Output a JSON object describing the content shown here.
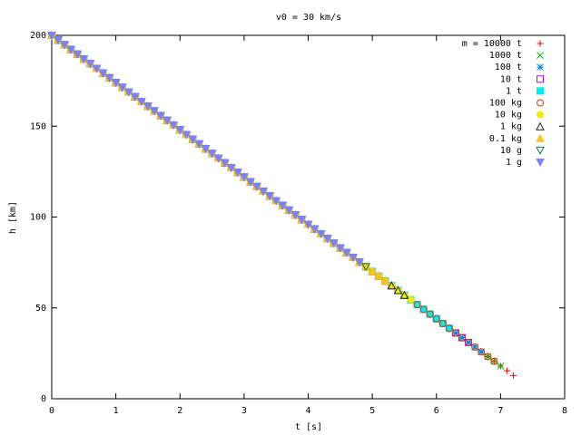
{
  "chart_data": {
    "type": "scatter",
    "title": "v0 = 30 km/s",
    "xlabel": "t [s]",
    "ylabel": "h [km]",
    "xlim": [
      0,
      8
    ],
    "xticks": [
      0,
      1,
      2,
      3,
      4,
      5,
      6,
      7,
      8
    ],
    "ylim": [
      0,
      200
    ],
    "yticks": [
      0,
      50,
      100,
      150,
      200
    ],
    "legend": "top-right",
    "x": [
      0,
      0.1,
      0.2,
      0.3,
      0.4,
      0.5,
      0.6,
      0.7,
      0.8,
      0.9,
      1,
      1.1,
      1.2,
      1.3,
      1.4,
      1.5,
      1.6,
      1.7,
      1.8,
      1.9,
      2,
      2.1,
      2.2,
      2.3,
      2.4,
      2.5,
      2.6,
      2.7,
      2.8,
      2.9,
      3,
      3.1,
      3.2,
      3.3,
      3.4,
      3.5,
      3.6,
      3.7,
      3.8,
      3.9,
      4,
      4.1,
      4.2,
      4.3,
      4.4,
      4.5,
      4.6,
      4.7,
      4.8,
      4.9,
      5,
      5.1,
      5.2,
      5.3,
      5.4,
      5.5,
      5.6,
      5.7,
      5.8,
      5.9,
      6,
      6.1,
      6.2,
      6.3,
      6.4,
      6.5,
      6.6,
      6.7,
      6.8,
      6.9,
      7,
      7.1,
      7.2
    ],
    "series": [
      {
        "name": "m = 10000 t",
        "color": "#ff0000",
        "marker": "plus",
        "values": [
          200,
          197.4,
          194.8,
          192.2,
          189.6,
          187,
          184.4,
          181.8,
          179.2,
          176.6,
          174,
          171.4,
          168.8,
          166.2,
          163.6,
          161,
          158.4,
          155.8,
          153.2,
          150.6,
          148,
          145.4,
          142.8,
          140.2,
          137.6,
          135,
          132.4,
          129.8,
          127.2,
          124.6,
          122,
          119.4,
          116.8,
          114.2,
          111.6,
          109,
          106.4,
          103.8,
          101.2,
          98.6,
          96,
          93.4,
          90.8,
          88.2,
          85.6,
          83,
          80.4,
          77.8,
          75.2,
          72.6,
          70,
          67.4,
          64.8,
          62.2,
          59.6,
          57,
          54.4,
          51.8,
          49.2,
          46.6,
          44,
          41.4,
          38.8,
          36.2,
          33.6,
          31,
          28.4,
          25.8,
          23.2,
          20.6,
          18,
          15.4,
          12.8
        ]
      },
      {
        "name": "1000 t",
        "color": "#00c000",
        "marker": "cross",
        "values": [
          200,
          197.4,
          194.8,
          192.2,
          189.6,
          187,
          184.4,
          181.8,
          179.2,
          176.6,
          174,
          171.4,
          168.8,
          166.2,
          163.6,
          161,
          158.4,
          155.8,
          153.2,
          150.6,
          148,
          145.4,
          142.8,
          140.2,
          137.6,
          135,
          132.4,
          129.8,
          127.2,
          124.6,
          122,
          119.4,
          116.8,
          114.2,
          111.6,
          109,
          106.4,
          103.8,
          101.2,
          98.6,
          96,
          93.4,
          90.8,
          88.2,
          85.6,
          83,
          80.4,
          77.8,
          75.2,
          72.6,
          70,
          67.4,
          64.8,
          62.2,
          59.6,
          57,
          54.4,
          51.8,
          49.2,
          46.6,
          44,
          41.4,
          38.8,
          36.2,
          33.6,
          31,
          28.4,
          25.8,
          23.2,
          20.6,
          18,
          null,
          null
        ]
      },
      {
        "name": "100 t",
        "color": "#0080ff",
        "marker": "star",
        "values": [
          200,
          197.4,
          194.8,
          192.2,
          189.6,
          187,
          184.4,
          181.8,
          179.2,
          176.6,
          174,
          171.4,
          168.8,
          166.2,
          163.6,
          161,
          158.4,
          155.8,
          153.2,
          150.6,
          148,
          145.4,
          142.8,
          140.2,
          137.6,
          135,
          132.4,
          129.8,
          127.2,
          124.6,
          122,
          119.4,
          116.8,
          114.2,
          111.6,
          109,
          106.4,
          103.8,
          101.2,
          98.6,
          96,
          93.4,
          90.8,
          88.2,
          85.6,
          83,
          80.4,
          77.8,
          75.2,
          72.6,
          70,
          67.4,
          64.8,
          62.2,
          59.6,
          57,
          54.4,
          51.8,
          49.2,
          46.6,
          44,
          41.4,
          38.8,
          36.2,
          33.6,
          31,
          28.4,
          25.8,
          null,
          null,
          null,
          null,
          null
        ]
      },
      {
        "name": "10 t",
        "color": "#c000ff",
        "marker": "square",
        "values": [
          200,
          197.4,
          194.8,
          192.2,
          189.6,
          187,
          184.4,
          181.8,
          179.2,
          176.6,
          174,
          171.4,
          168.8,
          166.2,
          163.6,
          161,
          158.4,
          155.8,
          153.2,
          150.6,
          148,
          145.4,
          142.8,
          140.2,
          137.6,
          135,
          132.4,
          129.8,
          127.2,
          124.6,
          122,
          119.4,
          116.8,
          114.2,
          111.6,
          109,
          106.4,
          103.8,
          101.2,
          98.6,
          96,
          93.4,
          90.8,
          88.2,
          85.6,
          83,
          80.4,
          77.8,
          75.2,
          72.6,
          70,
          67.4,
          64.8,
          62.2,
          59.6,
          57,
          54.4,
          51.8,
          49.2,
          46.6,
          44,
          41.4,
          38.8,
          36.2,
          33.6,
          31,
          null,
          null,
          null,
          null,
          null,
          null,
          null
        ]
      },
      {
        "name": "1 t",
        "color": "#00eeee",
        "marker": "square-filled",
        "values": [
          200,
          197.4,
          194.8,
          192.2,
          189.6,
          187,
          184.4,
          181.8,
          179.2,
          176.6,
          174,
          171.4,
          168.8,
          166.2,
          163.6,
          161,
          158.4,
          155.8,
          153.2,
          150.6,
          148,
          145.4,
          142.8,
          140.2,
          137.6,
          135,
          132.4,
          129.8,
          127.2,
          124.6,
          122,
          119.4,
          116.8,
          114.2,
          111.6,
          109,
          106.4,
          103.8,
          101.2,
          98.6,
          96,
          93.4,
          90.8,
          88.2,
          85.6,
          83,
          80.4,
          77.8,
          75.2,
          72.6,
          70,
          67.4,
          64.8,
          62.2,
          59.6,
          57,
          54.4,
          51.8,
          49.2,
          46.6,
          44,
          41.4,
          38.8,
          null,
          null,
          null,
          null,
          null,
          null,
          null,
          null,
          null,
          null
        ]
      },
      {
        "name": "100 kg",
        "color": "#c04000",
        "marker": "circle",
        "values": [
          200,
          197.4,
          194.8,
          192.2,
          189.6,
          187,
          184.4,
          181.8,
          179.2,
          176.6,
          174,
          171.4,
          168.8,
          166.2,
          163.6,
          161,
          158.4,
          155.8,
          153.2,
          150.6,
          148,
          145.4,
          142.8,
          140.2,
          137.6,
          135,
          132.4,
          129.8,
          127.2,
          124.6,
          122,
          119.4,
          116.8,
          114.2,
          111.6,
          109,
          106.4,
          103.8,
          101.2,
          98.6,
          96,
          93.4,
          90.8,
          88.2,
          85.6,
          83,
          80.4,
          77.8,
          75.2,
          72.6,
          70,
          67.4,
          64.8,
          62.2,
          59.6,
          57,
          54.4,
          51.8,
          49.2,
          46.6,
          44,
          41.4,
          38.8,
          36.2,
          33.6,
          31,
          28.4,
          25.8,
          23.2,
          20.6,
          null,
          null,
          null
        ]
      },
      {
        "name": "10 kg",
        "color": "#eeee00",
        "marker": "circle-filled",
        "values": [
          200,
          197.4,
          194.8,
          192.2,
          189.6,
          187,
          184.4,
          181.8,
          179.2,
          176.6,
          174,
          171.4,
          168.8,
          166.2,
          163.6,
          161,
          158.4,
          155.8,
          153.2,
          150.6,
          148,
          145.4,
          142.8,
          140.2,
          137.6,
          135,
          132.4,
          129.8,
          127.2,
          124.6,
          122,
          119.4,
          116.8,
          114.2,
          111.6,
          109,
          106.4,
          103.8,
          101.2,
          98.6,
          96,
          93.4,
          90.8,
          88.2,
          85.6,
          83,
          80.4,
          77.8,
          75.2,
          72.6,
          70,
          67.4,
          64.8,
          62.2,
          59.6,
          57,
          54.4,
          null,
          null,
          null,
          null,
          null,
          null,
          null,
          null,
          null,
          null,
          null,
          null,
          null,
          null,
          null,
          null
        ]
      },
      {
        "name": "1 kg",
        "color": "#202020",
        "marker": "triangle",
        "values": [
          200,
          197.4,
          194.8,
          192.2,
          189.6,
          187,
          184.4,
          181.8,
          179.2,
          176.6,
          174,
          171.4,
          168.8,
          166.2,
          163.6,
          161,
          158.4,
          155.8,
          153.2,
          150.6,
          148,
          145.4,
          142.8,
          140.2,
          137.6,
          135,
          132.4,
          129.8,
          127.2,
          124.6,
          122,
          119.4,
          116.8,
          114.2,
          111.6,
          109,
          106.4,
          103.8,
          101.2,
          98.6,
          96,
          93.4,
          90.8,
          88.2,
          85.6,
          83,
          80.4,
          77.8,
          75.2,
          72.6,
          70,
          67.4,
          64.8,
          62.2,
          59.6,
          57,
          null,
          null,
          null,
          null,
          null,
          null,
          null,
          null,
          null,
          null,
          null,
          null,
          null,
          null,
          null,
          null,
          null
        ]
      },
      {
        "name": "0.1 kg",
        "color": "#ffc020",
        "marker": "triangle-filled",
        "values": [
          200,
          197.4,
          194.8,
          192.2,
          189.6,
          187,
          184.4,
          181.8,
          179.2,
          176.6,
          174,
          171.4,
          168.8,
          166.2,
          163.6,
          161,
          158.4,
          155.8,
          153.2,
          150.6,
          148,
          145.4,
          142.8,
          140.2,
          137.6,
          135,
          132.4,
          129.8,
          127.2,
          124.6,
          122,
          119.4,
          116.8,
          114.2,
          111.6,
          109,
          106.4,
          103.8,
          101.2,
          98.6,
          96,
          93.4,
          90.8,
          88.2,
          85.6,
          83,
          80.4,
          77.8,
          75.2,
          72.6,
          70,
          67.4,
          64.8,
          null,
          null,
          null,
          null,
          null,
          null,
          null,
          null,
          null,
          null,
          null,
          null,
          null,
          null,
          null,
          null,
          null,
          null,
          null,
          null
        ]
      },
      {
        "name": "10 g",
        "color": "#008040",
        "marker": "triangle-down",
        "values": [
          200,
          197.4,
          194.8,
          192.2,
          189.6,
          187,
          184.4,
          181.8,
          179.2,
          176.6,
          174,
          171.4,
          168.8,
          166.2,
          163.6,
          161,
          158.4,
          155.8,
          153.2,
          150.6,
          148,
          145.4,
          142.8,
          140.2,
          137.6,
          135,
          132.4,
          129.8,
          127.2,
          124.6,
          122,
          119.4,
          116.8,
          114.2,
          111.6,
          109,
          106.4,
          103.8,
          101.2,
          98.6,
          96,
          93.4,
          90.8,
          88.2,
          85.6,
          83,
          80.4,
          77.8,
          75.2,
          72.6,
          null,
          null,
          null,
          null,
          null,
          null,
          null,
          null,
          null,
          null,
          null,
          null,
          null,
          null,
          null,
          null,
          null,
          null,
          null,
          null,
          null,
          null,
          null
        ]
      },
      {
        "name": "1 g",
        "color": "#8080ff",
        "marker": "triangle-down-filled",
        "values": [
          200,
          197.4,
          194.8,
          192.2,
          189.6,
          187,
          184.4,
          181.8,
          179.2,
          176.6,
          174,
          171.4,
          168.8,
          166.2,
          163.6,
          161,
          158.4,
          155.8,
          153.2,
          150.6,
          148,
          145.4,
          142.8,
          140.2,
          137.6,
          135,
          132.4,
          129.8,
          127.2,
          124.6,
          122,
          119.4,
          116.8,
          114.2,
          111.6,
          109,
          106.4,
          103.8,
          101.2,
          98.6,
          96,
          93.4,
          90.8,
          88.2,
          85.6,
          83,
          80.4,
          77.8,
          75.2,
          null,
          null,
          null,
          null,
          null,
          null,
          null,
          null,
          null,
          null,
          null,
          null,
          null,
          null,
          null,
          null,
          null,
          null,
          null,
          null,
          null,
          null,
          null,
          null
        ]
      }
    ]
  }
}
